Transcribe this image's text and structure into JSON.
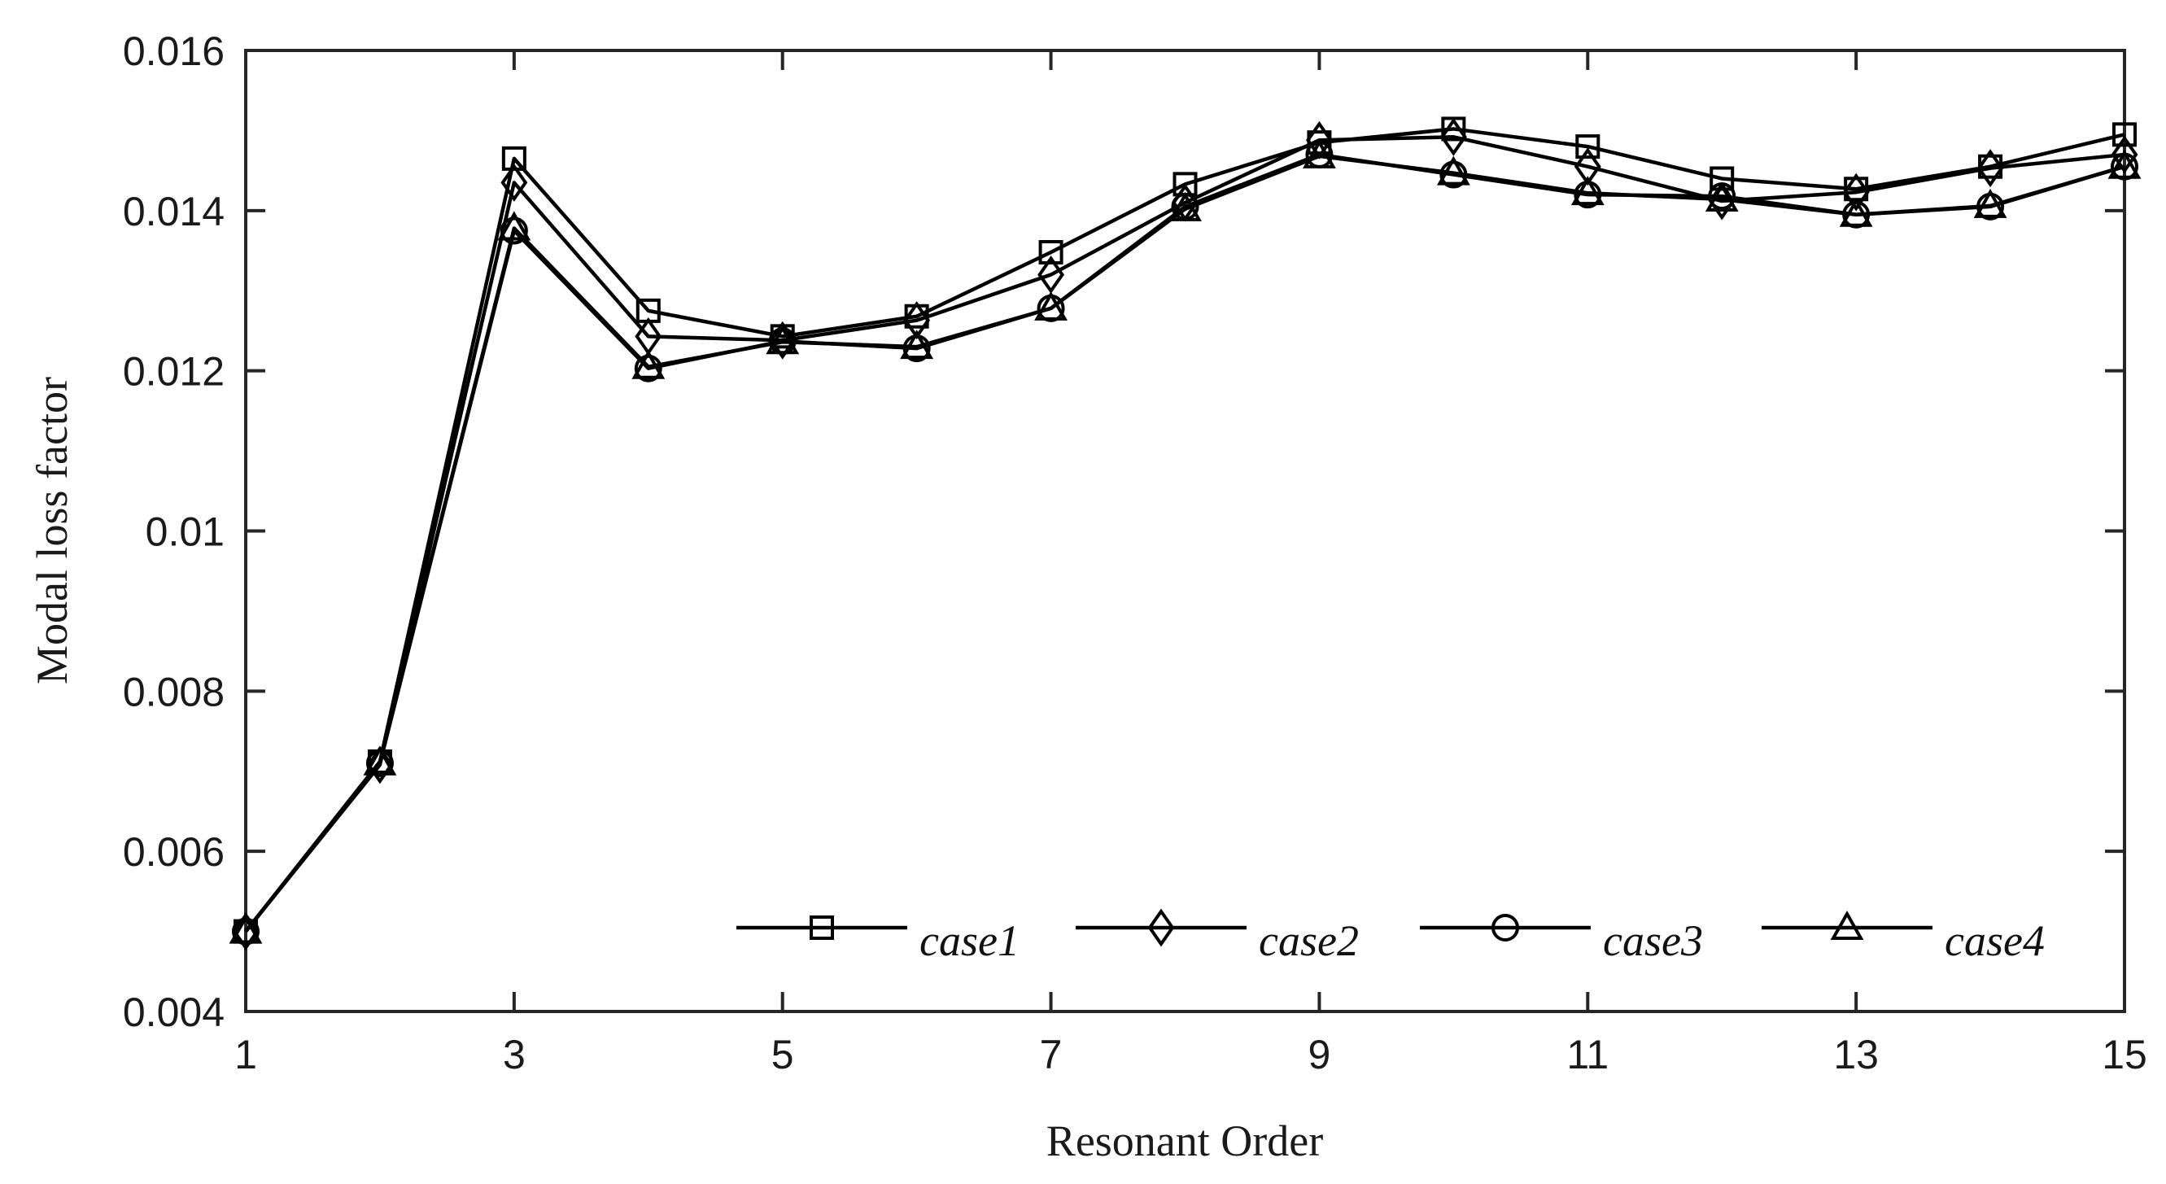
{
  "chart_data": {
    "type": "line",
    "title": "",
    "xlabel": "Resonant Order",
    "ylabel": "Modal loss factor",
    "xlim": [
      1,
      15
    ],
    "ylim": [
      0.004,
      0.016
    ],
    "xticks": [
      1,
      3,
      5,
      7,
      9,
      11,
      13,
      15
    ],
    "xtick_labels": [
      "1",
      "3",
      "5",
      "7",
      "9",
      "11",
      "13",
      "15"
    ],
    "yticks": [
      0.004,
      0.006,
      0.008,
      0.01,
      0.012,
      0.014,
      0.016
    ],
    "ytick_labels": [
      "0.004",
      "0.006",
      "0.008",
      "0.01",
      "0.012",
      "0.014",
      "0.016"
    ],
    "grid": false,
    "legend_position": "bottom-right",
    "x": [
      1,
      2,
      3,
      4,
      5,
      6,
      7,
      8,
      9,
      10,
      11,
      12,
      13,
      14,
      15
    ],
    "series": [
      {
        "name": "case1",
        "marker": "square",
        "values": [
          0.005,
          0.00712,
          0.01465,
          0.01275,
          0.01243,
          0.01268,
          0.01348,
          0.01433,
          0.01485,
          0.01502,
          0.0148,
          0.0144,
          0.01427,
          0.01455,
          0.01495
        ]
      },
      {
        "name": "case2",
        "marker": "diamond",
        "values": [
          0.005,
          0.00708,
          0.01435,
          0.01243,
          0.01238,
          0.01263,
          0.0132,
          0.0141,
          0.01488,
          0.01492,
          0.01455,
          0.01412,
          0.01423,
          0.01453,
          0.0147
        ]
      },
      {
        "name": "case3",
        "marker": "circle",
        "values": [
          0.005,
          0.0071,
          0.01375,
          0.01203,
          0.01237,
          0.01228,
          0.01278,
          0.01405,
          0.0147,
          0.01445,
          0.0142,
          0.01418,
          0.01395,
          0.01405,
          0.01455
        ]
      },
      {
        "name": "case4",
        "marker": "triangle",
        "values": [
          0.005,
          0.0071,
          0.01378,
          0.01205,
          0.01236,
          0.0123,
          0.01278,
          0.01402,
          0.01468,
          0.01447,
          0.01422,
          0.01414,
          0.01395,
          0.01406,
          0.01455
        ]
      }
    ],
    "colors": {
      "line": "#000000",
      "axis": "#262626",
      "background": "#ffffff"
    }
  }
}
